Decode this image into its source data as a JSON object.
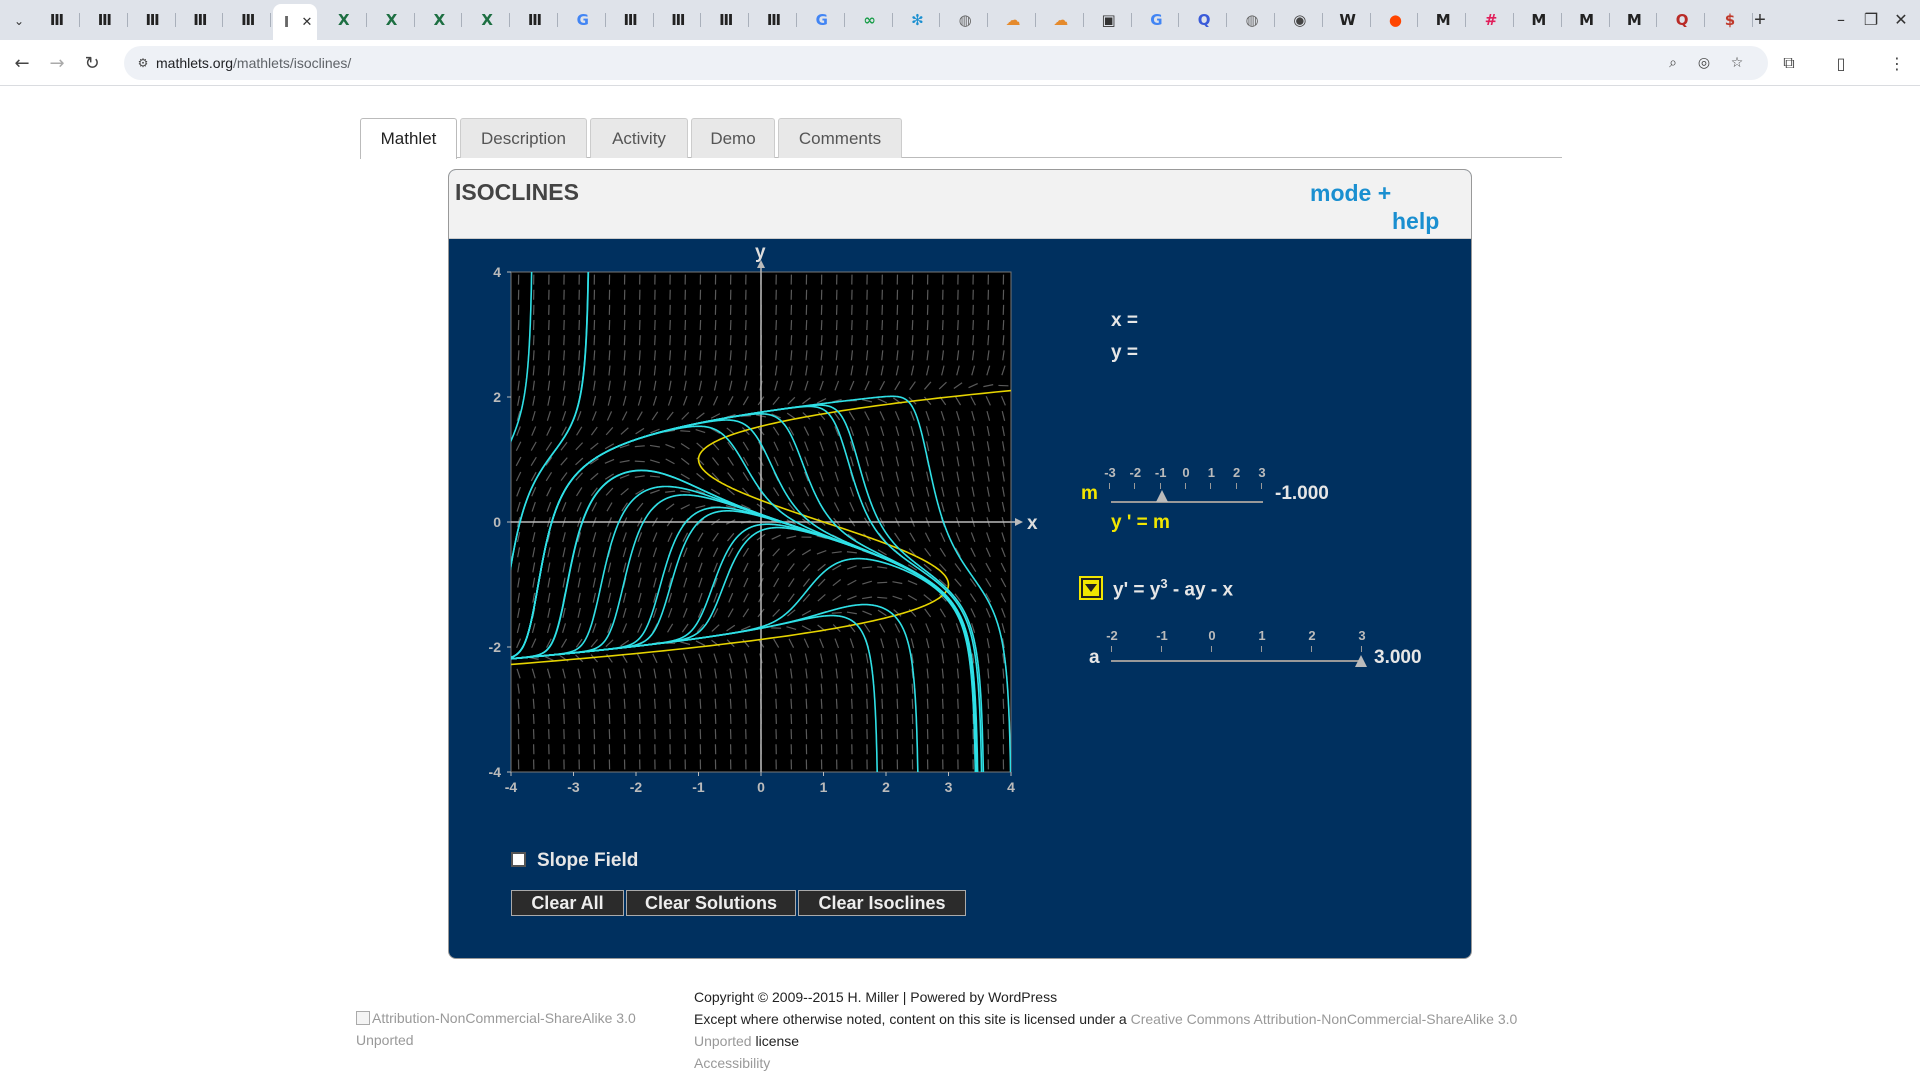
{
  "browser": {
    "tabs": [
      {
        "icon": "mit-favicon-icon",
        "glyph": "Ⅲ",
        "color": "#222"
      },
      {
        "icon": "mit-favicon-icon",
        "glyph": "Ⅲ",
        "color": "#222"
      },
      {
        "icon": "mit-favicon-icon",
        "glyph": "Ⅲ",
        "color": "#222"
      },
      {
        "icon": "mit-favicon-icon",
        "glyph": "Ⅲ",
        "color": "#222"
      },
      {
        "icon": "mit-favicon-icon",
        "glyph": "Ⅲ",
        "color": "#222"
      },
      {
        "icon": "mathlets-favicon-icon",
        "glyph": "I",
        "color": "#666",
        "active": true
      },
      {
        "icon": "excel-favicon-icon",
        "glyph": "X",
        "color": "#1d6f42"
      },
      {
        "icon": "excel-favicon-icon",
        "glyph": "X",
        "color": "#1d6f42"
      },
      {
        "icon": "excel-favicon-icon",
        "glyph": "X",
        "color": "#1d6f42"
      },
      {
        "icon": "excel-favicon-icon",
        "glyph": "X",
        "color": "#1d6f42"
      },
      {
        "icon": "mit-favicon-icon",
        "glyph": "Ⅲ",
        "color": "#222"
      },
      {
        "icon": "google-favicon-icon",
        "glyph": "G",
        "color": "#4285f4"
      },
      {
        "icon": "mit-favicon-icon",
        "glyph": "Ⅲ",
        "color": "#222"
      },
      {
        "icon": "mit-favicon-icon",
        "glyph": "Ⅲ",
        "color": "#222"
      },
      {
        "icon": "mit-favicon-icon",
        "glyph": "Ⅲ",
        "color": "#222"
      },
      {
        "icon": "mit-favicon-icon",
        "glyph": "Ⅲ",
        "color": "#222"
      },
      {
        "icon": "google-favicon-icon",
        "glyph": "G",
        "color": "#4285f4"
      },
      {
        "icon": "link-favicon-icon",
        "glyph": "∞",
        "color": "#1a9e4a"
      },
      {
        "icon": "snowflake-favicon-icon",
        "glyph": "✻",
        "color": "#1a8fd0"
      },
      {
        "icon": "globe-favicon-icon",
        "glyph": "◍",
        "color": "#666"
      },
      {
        "icon": "cloud-favicon-icon",
        "glyph": "☁",
        "color": "#e58a2c"
      },
      {
        "icon": "cloud-favicon-icon",
        "glyph": "☁",
        "color": "#e58a2c"
      },
      {
        "icon": "news-favicon-icon",
        "glyph": "▣",
        "color": "#333"
      },
      {
        "icon": "google-favicon-icon",
        "glyph": "G",
        "color": "#4285f4"
      },
      {
        "icon": "search-favicon-icon",
        "glyph": "Q",
        "color": "#3a5bd9"
      },
      {
        "icon": "globe-favicon-icon",
        "glyph": "◍",
        "color": "#666"
      },
      {
        "icon": "mask-favicon-icon",
        "glyph": "◉",
        "color": "#444"
      },
      {
        "icon": "wikipedia-favicon-icon",
        "glyph": "W",
        "color": "#222"
      },
      {
        "icon": "reddit-favicon-icon",
        "glyph": "●",
        "color": "#ff4500"
      },
      {
        "icon": "mathlets-favicon-icon",
        "glyph": "M",
        "color": "#222"
      },
      {
        "icon": "slack-favicon-icon",
        "glyph": "#",
        "color": "#e01e5a"
      },
      {
        "icon": "mathlets-favicon-icon",
        "glyph": "M",
        "color": "#222"
      },
      {
        "icon": "mathlets-favicon-icon",
        "glyph": "M",
        "color": "#222"
      },
      {
        "icon": "mathlets-favicon-icon",
        "glyph": "M",
        "color": "#222"
      },
      {
        "icon": "quora-favicon-icon",
        "glyph": "Q",
        "color": "#b92b27"
      },
      {
        "icon": "dollar-favicon-icon",
        "glyph": "$",
        "color": "#c0392b"
      }
    ],
    "new_tab": "+",
    "url_host": "mathlets.org",
    "url_path": "/mathlets/isoclines/"
  },
  "tabs": [
    "Mathlet",
    "Description",
    "Activity",
    "Demo",
    "Comments"
  ],
  "mathlet": {
    "title": "ISOCLINES",
    "mode_label": "mode  +",
    "help_label": "help",
    "x_readout": "x =",
    "y_readout": "y =",
    "m_label": "m",
    "m_ticks": [
      "-3",
      "-2",
      "-1",
      "0",
      "1",
      "2",
      "3"
    ],
    "m_value": "-1.000",
    "m_value_num": -1.0,
    "m_range": [
      -3,
      3
    ],
    "isocline_eq": "y ' = m",
    "equation_lhs": "y' = y",
    "equation_exp": "3",
    "equation_rhs": " - ay - x",
    "a_label": "a",
    "a_ticks": [
      "-2",
      "-1",
      "0",
      "1",
      "2",
      "3"
    ],
    "a_value": "3.000",
    "a_value_num": 3.0,
    "a_range": [
      -2,
      3
    ],
    "slope_field_label": "Slope Field",
    "slope_field_checked": false,
    "buttons": {
      "clear_all": "Clear All",
      "clear_solutions": "Clear Solutions",
      "clear_isoclines": "Clear Isoclines"
    },
    "colors": {
      "bg": "#00305f",
      "solution": "#2fe0e6",
      "isocline": "#e6d400",
      "plot_bg": "#000000"
    }
  },
  "chart_data": {
    "type": "line",
    "xlabel": "x",
    "ylabel": "y",
    "xlim": [
      -4,
      4
    ],
    "ylim": [
      -4,
      4
    ],
    "x_ticks": [
      "-4",
      "-3",
      "-2",
      "-1",
      "0",
      "1",
      "2",
      "3",
      "4"
    ],
    "y_ticks": [
      "4",
      "2",
      "0",
      "-2",
      "-4"
    ],
    "equation": "y' = y^3 - a*y - x",
    "a": 3,
    "isocline_m": -1,
    "solution_starts": [
      [
        -4,
        1.3
      ],
      [
        -3.4,
        1.0
      ],
      [
        -2.5,
        0.6
      ],
      [
        -2.0,
        0.4
      ],
      [
        -1.2,
        0.0
      ],
      [
        -0.5,
        -0.4
      ],
      [
        0.0,
        0.5
      ],
      [
        0.5,
        0.3
      ],
      [
        1.0,
        0.2
      ],
      [
        -3.0,
        -0.5
      ],
      [
        -2.2,
        -1.0
      ],
      [
        -1.5,
        -1.2
      ],
      [
        -0.8,
        -1.5
      ],
      [
        0.2,
        -1.6
      ],
      [
        1.2,
        -1.5
      ],
      [
        2.0,
        -1.4
      ],
      [
        -3.8,
        0.2
      ],
      [
        2.6,
        -0.8
      ],
      [
        1.6,
        0.8
      ],
      [
        3.2,
        -0.6
      ]
    ]
  },
  "footer": {
    "license_img_alt": "Attribution-NonCommercial-ShareAlike 3.0 Unported",
    "copyright": "Copyright © 2009--2015 H. Miller | Powered by WordPress",
    "license_prefix": "Except where otherwise noted, content on this site is licensed under a ",
    "license_link_1": "Creative Commons Attribution-NonCommercial-ShareAlike 3.0",
    "license_link_2": "Unported",
    "license_suffix": " license",
    "accessibility": "Accessibility"
  }
}
